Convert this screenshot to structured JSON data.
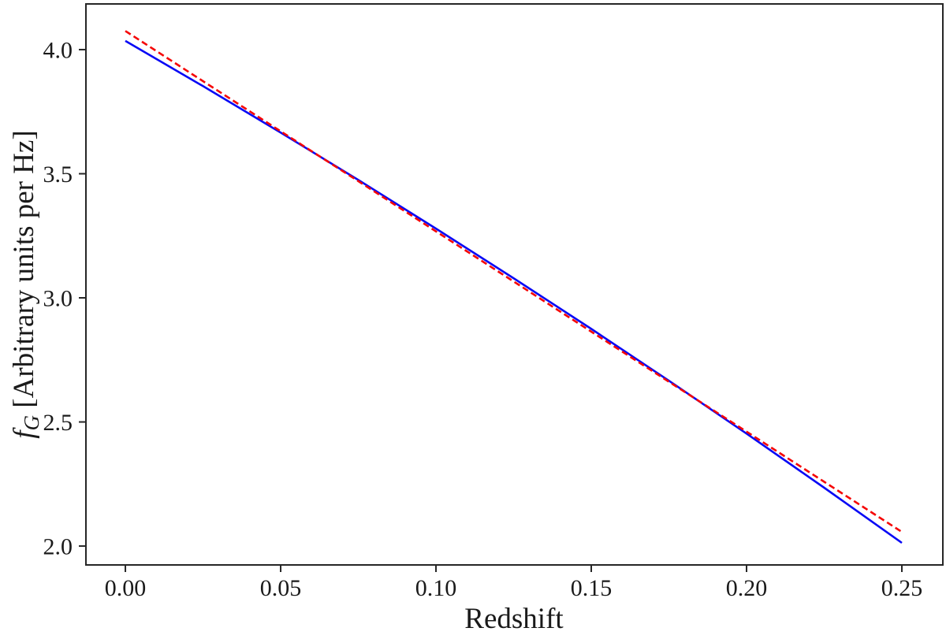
{
  "figure": {
    "background": "#ffffff",
    "frame_color": "#262626",
    "text_color": "#1a1a1a"
  },
  "chart_data": {
    "type": "line",
    "title": "",
    "xlabel": "Redshift",
    "ylabel": "f_G [Arbitrary units per Hz]",
    "ylabel_parts": {
      "symbol": "f",
      "subscript": "G",
      "rest": " [Arbitrary units per Hz]"
    },
    "xlim": [
      -0.0127,
      0.2632
    ],
    "ylim": [
      1.924,
      4.184
    ],
    "grid": false,
    "legend_position": "none",
    "xticks": {
      "values": [
        0.0,
        0.05,
        0.1,
        0.15,
        0.2,
        0.25
      ],
      "labels": [
        "0.00",
        "0.05",
        "0.10",
        "0.15",
        "0.20",
        "0.25"
      ]
    },
    "yticks": {
      "values": [
        2.0,
        2.5,
        3.0,
        3.5,
        4.0
      ],
      "labels": [
        "2.0",
        "2.5",
        "3.0",
        "3.5",
        "4.0"
      ]
    },
    "x": [
      0.0,
      0.025,
      0.05,
      0.075,
      0.1,
      0.125,
      0.15,
      0.175,
      0.2,
      0.225,
      0.25
    ],
    "series": [
      {
        "name": "blue-solid-curve",
        "color": "#0808f5",
        "line_style": "solid",
        "line_width": 2.6,
        "values": [
          4.035,
          3.853,
          3.666,
          3.475,
          3.279,
          3.079,
          2.875,
          2.666,
          2.453,
          2.235,
          2.013
        ]
      },
      {
        "name": "red-dashed-line",
        "color": "#f50505",
        "line_style": "dashed",
        "line_width": 2.6,
        "values": [
          4.075,
          3.873,
          3.671,
          3.47,
          3.268,
          3.066,
          2.864,
          2.662,
          2.461,
          2.259,
          2.057
        ]
      }
    ]
  }
}
